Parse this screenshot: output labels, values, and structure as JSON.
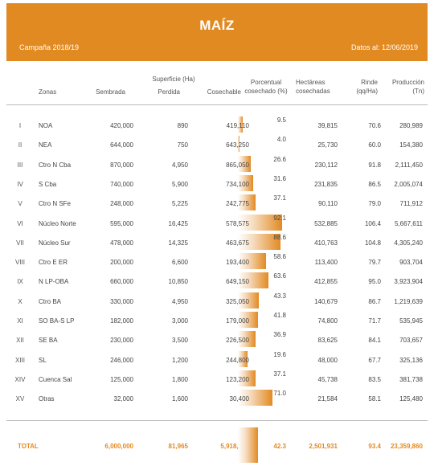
{
  "header": {
    "title": "MAÍZ",
    "campaign": "Campaña 2018/19",
    "date_label": "Datos al: 12/06/2019"
  },
  "columns": {
    "zonas": "Zonas",
    "superficie": "Superficie (Ha)",
    "sembrada": "Sembrada",
    "perdida": "Perdida",
    "cosechable": "Cosechable",
    "porcentual": "Porcentual cosechado (%)",
    "hectareas": "Hectáreas cosechadas",
    "rinde": "Rinde (qq/Ha)",
    "produccion": "Producción (Tn)"
  },
  "rows": [
    {
      "num": "I",
      "zone": "NOA",
      "sembrada": "420,000",
      "perdida": "890",
      "cosechable": "419,110",
      "pct": "9.5",
      "pct_value": 9.5,
      "hectareas": "39,815",
      "rinde": "70.6",
      "produccion": "280,989"
    },
    {
      "num": "II",
      "zone": "NEA",
      "sembrada": "644,000",
      "perdida": "750",
      "cosechable": "643,250",
      "pct": "4.0",
      "pct_value": 4.0,
      "hectareas": "25,730",
      "rinde": "60.0",
      "produccion": "154,380"
    },
    {
      "num": "III",
      "zone": "Ctro N Cba",
      "sembrada": "870,000",
      "perdida": "4,950",
      "cosechable": "865,050",
      "pct": "26.6",
      "pct_value": 26.6,
      "hectareas": "230,112",
      "rinde": "91.8",
      "produccion": "2,111,450"
    },
    {
      "num": "IV",
      "zone": "S Cba",
      "sembrada": "740,000",
      "perdida": "5,900",
      "cosechable": "734,100",
      "pct": "31.6",
      "pct_value": 31.6,
      "hectareas": "231,835",
      "rinde": "86.5",
      "produccion": "2,005,074"
    },
    {
      "num": "V",
      "zone": "Ctro N SFe",
      "sembrada": "248,000",
      "perdida": "5,225",
      "cosechable": "242,775",
      "pct": "37.1",
      "pct_value": 37.1,
      "hectareas": "90,110",
      "rinde": "79.0",
      "produccion": "711,912"
    },
    {
      "num": "VI",
      "zone": "Núcleo Norte",
      "sembrada": "595,000",
      "perdida": "16,425",
      "cosechable": "578,575",
      "pct": "92.1",
      "pct_value": 92.1,
      "hectareas": "532,885",
      "rinde": "106.4",
      "produccion": "5,667,611"
    },
    {
      "num": "VII",
      "zone": "Núcleo Sur",
      "sembrada": "478,000",
      "perdida": "14,325",
      "cosechable": "463,675",
      "pct": "88.6",
      "pct_value": 88.6,
      "hectareas": "410,763",
      "rinde": "104.8",
      "produccion": "4,305,240"
    },
    {
      "num": "VIII",
      "zone": "Ctro E ER",
      "sembrada": "200,000",
      "perdida": "6,600",
      "cosechable": "193,400",
      "pct": "58.6",
      "pct_value": 58.6,
      "hectareas": "113,400",
      "rinde": "79.7",
      "produccion": "903,704"
    },
    {
      "num": "IX",
      "zone": "N LP-OBA",
      "sembrada": "660,000",
      "perdida": "10,850",
      "cosechable": "649,150",
      "pct": "63.6",
      "pct_value": 63.6,
      "hectareas": "412,855",
      "rinde": "95.0",
      "produccion": "3,923,904"
    },
    {
      "num": "X",
      "zone": "Ctro BA",
      "sembrada": "330,000",
      "perdida": "4,950",
      "cosechable": "325,050",
      "pct": "43.3",
      "pct_value": 43.3,
      "hectareas": "140,679",
      "rinde": "86.7",
      "produccion": "1,219,639"
    },
    {
      "num": "XI",
      "zone": "SO BA-S LP",
      "sembrada": "182,000",
      "perdida": "3,000",
      "cosechable": "179,000",
      "pct": "41.8",
      "pct_value": 41.8,
      "hectareas": "74,800",
      "rinde": "71.7",
      "produccion": "535,945"
    },
    {
      "num": "XII",
      "zone": "SE BA",
      "sembrada": "230,000",
      "perdida": "3,500",
      "cosechable": "226,500",
      "pct": "36.9",
      "pct_value": 36.9,
      "hectareas": "83,625",
      "rinde": "84.1",
      "produccion": "703,657"
    },
    {
      "num": "XIII",
      "zone": "SL",
      "sembrada": "246,000",
      "perdida": "1,200",
      "cosechable": "244,800",
      "pct": "19.6",
      "pct_value": 19.6,
      "hectareas": "48,000",
      "rinde": "67.7",
      "produccion": "325,136"
    },
    {
      "num": "XIV",
      "zone": "Cuenca Sal",
      "sembrada": "125,000",
      "perdida": "1,800",
      "cosechable": "123,200",
      "pct": "37.1",
      "pct_value": 37.1,
      "hectareas": "45,738",
      "rinde": "83.5",
      "produccion": "381,738"
    },
    {
      "num": "XV",
      "zone": "Otras",
      "sembrada": "32,000",
      "perdida": "1,600",
      "cosechable": "30,400",
      "pct": "71.0",
      "pct_value": 71.0,
      "hectareas": "21,584",
      "rinde": "58.1",
      "produccion": "125,480"
    }
  ],
  "total": {
    "label": "TOTAL",
    "sembrada": "6,000,000",
    "perdida": "81,965",
    "cosechable": "5,918,035",
    "pct": "42.3",
    "pct_value": 42.3,
    "hectareas": "2,501,931",
    "rinde": "93.4",
    "produccion": "23,359,860"
  },
  "colors": {
    "accent": "#e28a22",
    "text": "#444444"
  }
}
